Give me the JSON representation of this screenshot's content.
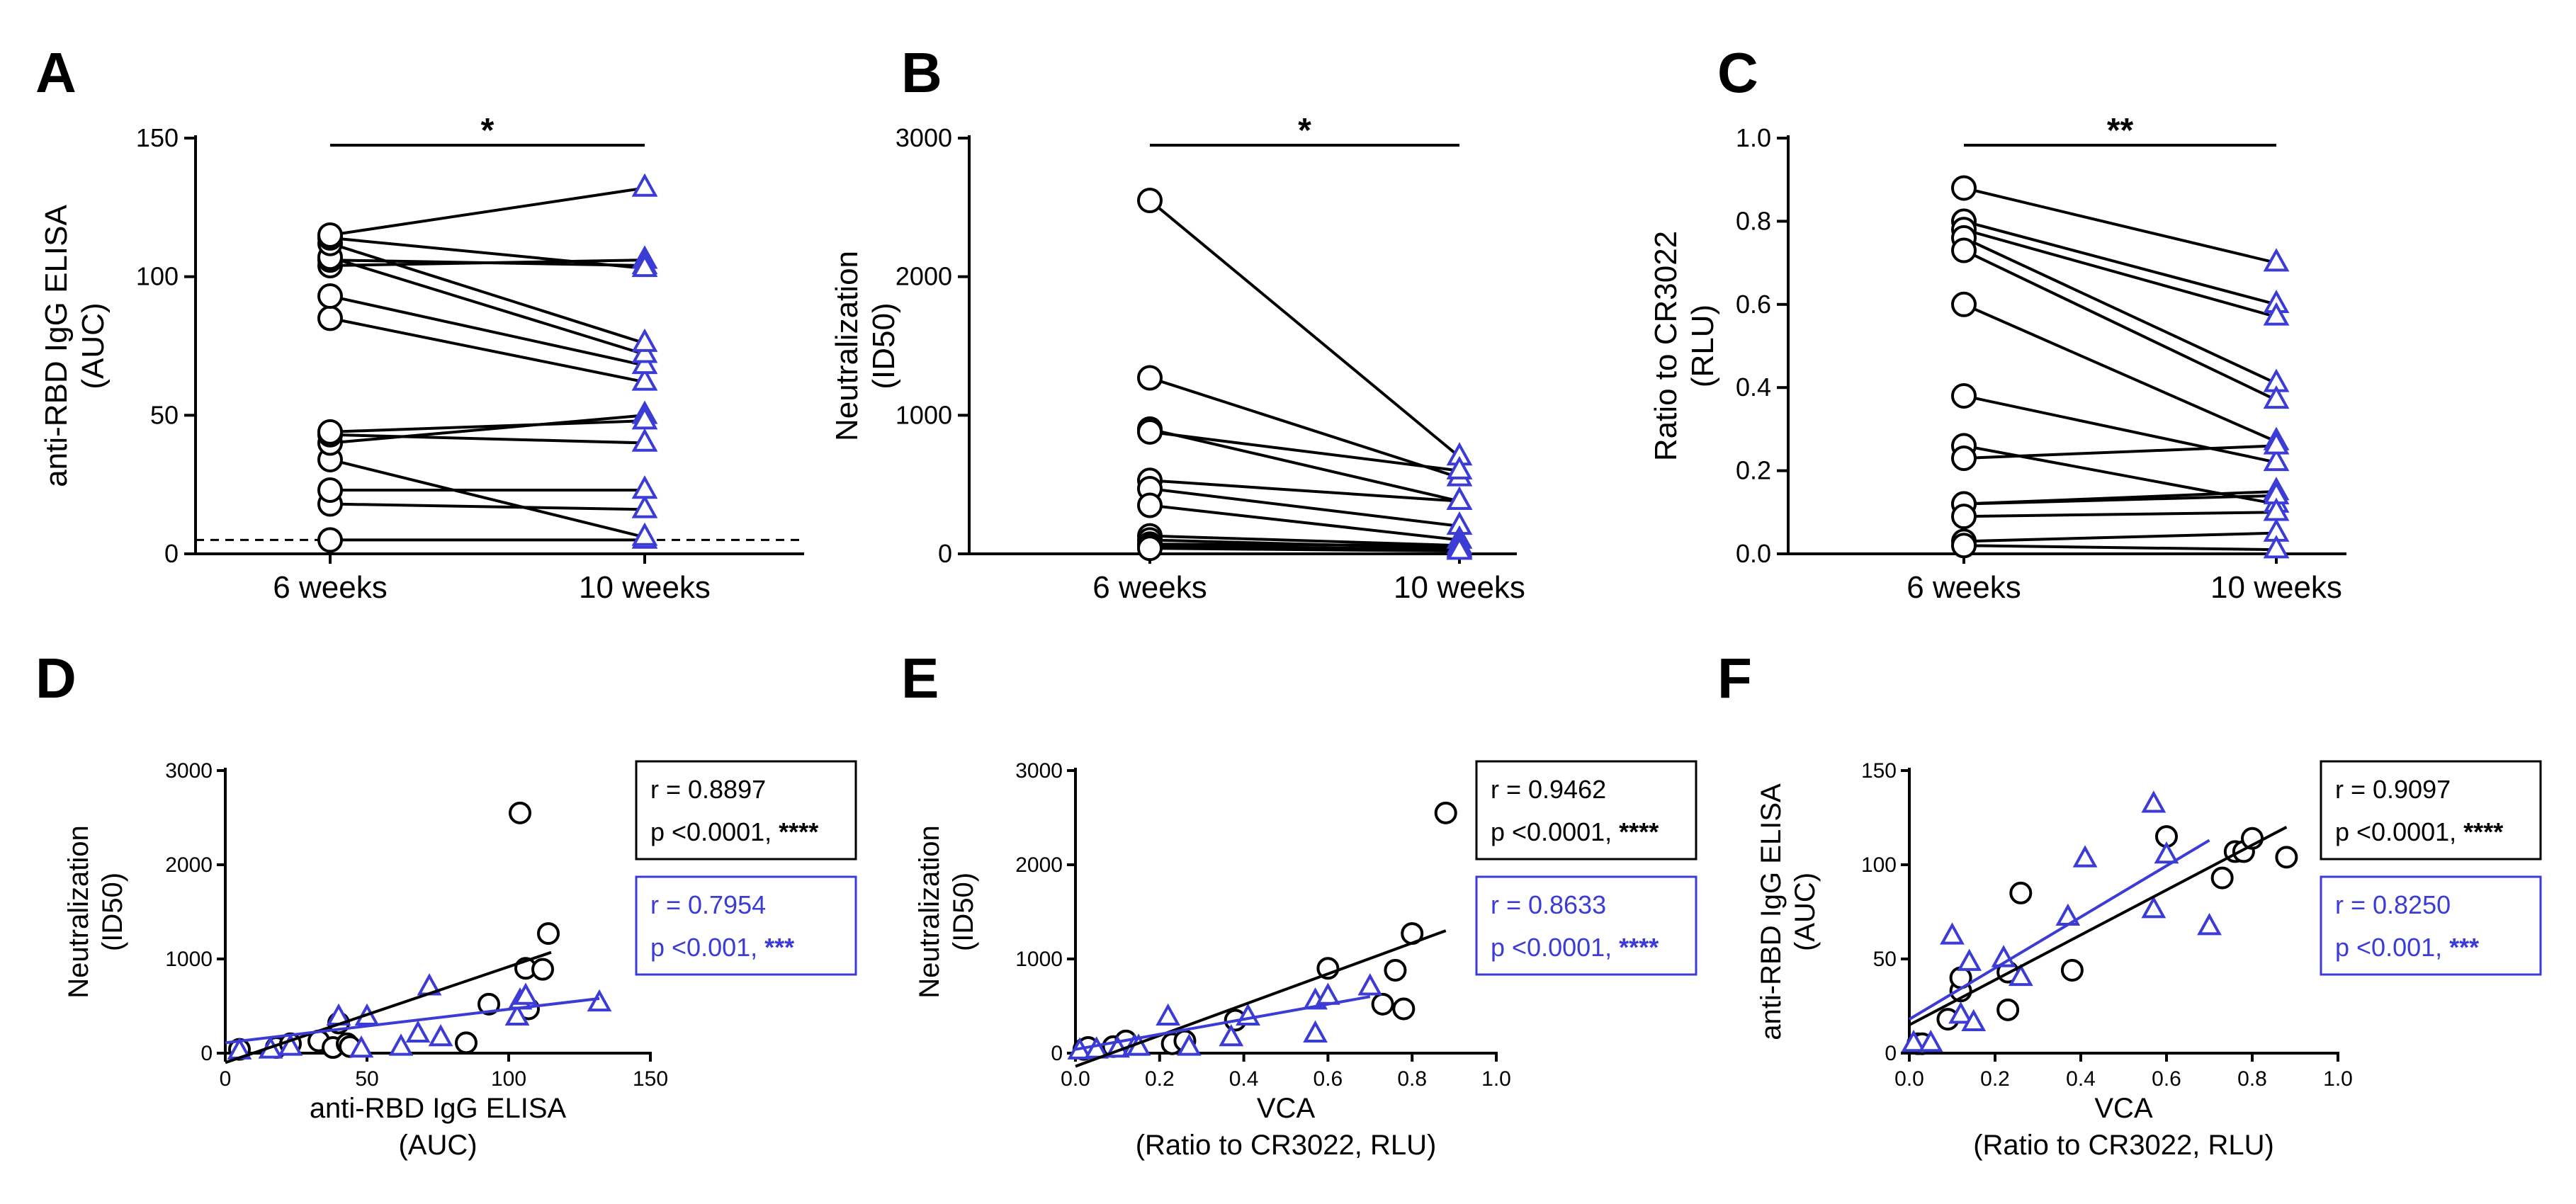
{
  "colors": {
    "black": "#000000",
    "blue": "#3b3bd6"
  },
  "chart_data": [
    {
      "type": "line",
      "panel": "A",
      "ylabel": [
        "anti-RBD IgG ELISA",
        "(AUC)"
      ],
      "ylim": [
        0,
        150
      ],
      "yticks": [
        0,
        50,
        100,
        150
      ],
      "categories": [
        "6 weeks",
        "10 weeks"
      ],
      "significance": "*",
      "cutoff": 5,
      "pairs": [
        [
          5,
          5
        ],
        [
          18,
          16
        ],
        [
          23,
          23
        ],
        [
          34,
          6
        ],
        [
          40,
          50
        ],
        [
          43,
          40
        ],
        [
          44,
          48
        ],
        [
          85,
          62
        ],
        [
          93,
          68
        ],
        [
          104,
          106
        ],
        [
          106,
          104
        ],
        [
          107,
          72
        ],
        [
          112,
          76
        ],
        [
          114,
          103
        ],
        [
          115,
          132
        ]
      ]
    },
    {
      "type": "line",
      "panel": "B",
      "ylabel": [
        "Neutralization",
        "(ID50)"
      ],
      "ylim": [
        0,
        3000
      ],
      "yticks": [
        0,
        1000,
        2000,
        3000
      ],
      "categories": [
        "6 weeks",
        "10 weeks"
      ],
      "significance": "*",
      "pairs": [
        [
          2550,
          700
        ],
        [
          1270,
          550
        ],
        [
          900,
          380
        ],
        [
          880,
          600
        ],
        [
          530,
          380
        ],
        [
          470,
          200
        ],
        [
          350,
          100
        ],
        [
          130,
          60
        ],
        [
          100,
          40
        ],
        [
          70,
          60
        ],
        [
          60,
          30
        ],
        [
          40,
          20
        ]
      ]
    },
    {
      "type": "line",
      "panel": "C",
      "ylabel": [
        "Ratio to CR3022",
        "(RLU)"
      ],
      "ylim": [
        0,
        1.0
      ],
      "yticks": [
        "0.0",
        "0.2",
        "0.4",
        "0.6",
        "0.8",
        "1.0"
      ],
      "categories": [
        "6 weeks",
        "10 weeks"
      ],
      "significance": "**",
      "pairs": [
        [
          0.88,
          0.7
        ],
        [
          0.8,
          0.6
        ],
        [
          0.78,
          0.57
        ],
        [
          0.76,
          0.41
        ],
        [
          0.73,
          0.37
        ],
        [
          0.6,
          0.27
        ],
        [
          0.38,
          0.22
        ],
        [
          0.26,
          0.12
        ],
        [
          0.23,
          0.26
        ],
        [
          0.12,
          0.15
        ],
        [
          0.12,
          0.14
        ],
        [
          0.09,
          0.1
        ],
        [
          0.03,
          0.05
        ],
        [
          0.02,
          0.01
        ]
      ]
    },
    {
      "type": "scatter",
      "panel": "D",
      "xlabel": [
        "anti-RBD IgG ELISA",
        "(AUC)"
      ],
      "ylabel": [
        "Neutralization",
        "(ID50)"
      ],
      "xlim": [
        0,
        150
      ],
      "ylim": [
        0,
        3000
      ],
      "xticks": [
        0,
        50,
        100,
        150
      ],
      "yticks": [
        0,
        1000,
        2000,
        3000
      ],
      "series": [
        {
          "name": "6 weeks",
          "marker": "circle",
          "color": "#000000",
          "points": [
            [
              5,
              40
            ],
            [
              18,
              60
            ],
            [
              23,
              100
            ],
            [
              33,
              130
            ],
            [
              38,
              60
            ],
            [
              40,
              320
            ],
            [
              43,
              100
            ],
            [
              44,
              70
            ],
            [
              85,
              110
            ],
            [
              93,
              520
            ],
            [
              104,
              2550
            ],
            [
              106,
              900
            ],
            [
              107,
              470
            ],
            [
              112,
              890
            ],
            [
              114,
              1270
            ]
          ],
          "fit": [
            [
              0,
              -100
            ],
            [
              115,
              1070
            ]
          ]
        },
        {
          "name": "10 weeks",
          "marker": "triangle",
          "color": "#3b3bd6",
          "points": [
            [
              5,
              20
            ],
            [
              16,
              30
            ],
            [
              23,
              60
            ],
            [
              40,
              380
            ],
            [
              48,
              40
            ],
            [
              50,
              380
            ],
            [
              62,
              60
            ],
            [
              68,
              200
            ],
            [
              72,
              700
            ],
            [
              76,
              160
            ],
            [
              103,
              380
            ],
            [
              104,
              550
            ],
            [
              106,
              600
            ],
            [
              132,
              530
            ]
          ],
          "fit": [
            [
              0,
              110
            ],
            [
              132,
              580
            ]
          ]
        }
      ],
      "stats": [
        {
          "r": "r = 0.8897",
          "p": "p <0.0001, ",
          "stars": "****",
          "color": "#000000"
        },
        {
          "r": "r = 0.7954",
          "p": "p <0.001, ",
          "stars": "***",
          "color": "#3b3bd6"
        }
      ]
    },
    {
      "type": "scatter",
      "panel": "E",
      "xlabel": [
        "VCA",
        "(Ratio to CR3022, RLU)"
      ],
      "ylabel": [
        "Neutralization",
        "(ID50)"
      ],
      "xlim": [
        0,
        1.0
      ],
      "ylim": [
        0,
        3000
      ],
      "xticks": [
        "0.0",
        "0.2",
        "0.4",
        "0.6",
        "0.8",
        "1.0"
      ],
      "yticks": [
        0,
        1000,
        2000,
        3000
      ],
      "series": [
        {
          "name": "6 weeks",
          "marker": "circle",
          "color": "#000000",
          "points": [
            [
              0.02,
              40
            ],
            [
              0.03,
              60
            ],
            [
              0.09,
              70
            ],
            [
              0.12,
              100
            ],
            [
              0.12,
              130
            ],
            [
              0.23,
              100
            ],
            [
              0.26,
              130
            ],
            [
              0.38,
              350
            ],
            [
              0.6,
              900
            ],
            [
              0.73,
              520
            ],
            [
              0.76,
              880
            ],
            [
              0.78,
              470
            ],
            [
              0.8,
              1270
            ],
            [
              0.88,
              2550
            ]
          ],
          "fit": [
            [
              0,
              -140
            ],
            [
              0.88,
              1300
            ]
          ]
        },
        {
          "name": "10 weeks",
          "marker": "triangle",
          "color": "#3b3bd6",
          "points": [
            [
              0.01,
              20
            ],
            [
              0.05,
              30
            ],
            [
              0.1,
              40
            ],
            [
              0.14,
              60
            ],
            [
              0.15,
              60
            ],
            [
              0.22,
              380
            ],
            [
              0.27,
              60
            ],
            [
              0.37,
              160
            ],
            [
              0.41,
              380
            ],
            [
              0.57,
              200
            ],
            [
              0.57,
              550
            ],
            [
              0.6,
              600
            ],
            [
              0.7,
              700
            ]
          ],
          "fit": [
            [
              0,
              40
            ],
            [
              0.7,
              600
            ]
          ]
        }
      ],
      "stats": [
        {
          "r": "r = 0.9462",
          "p": "p <0.0001, ",
          "stars": "****",
          "color": "#000000"
        },
        {
          "r": "r = 0.8633",
          "p": "p <0.0001, ",
          "stars": "****",
          "color": "#3b3bd6"
        }
      ]
    },
    {
      "type": "scatter",
      "panel": "F",
      "xlabel": [
        "VCA",
        "(Ratio to CR3022, RLU)"
      ],
      "ylabel": [
        "anti-RBD IgG ELISA",
        "(AUC)"
      ],
      "xlim": [
        0,
        1.0
      ],
      "ylim": [
        0,
        150
      ],
      "xticks": [
        "0.0",
        "0.2",
        "0.4",
        "0.6",
        "0.8",
        "1.0"
      ],
      "yticks": [
        0,
        50,
        100,
        150
      ],
      "series": [
        {
          "name": "6 weeks",
          "marker": "circle",
          "color": "#000000",
          "points": [
            [
              0.02,
              5
            ],
            [
              0.03,
              5
            ],
            [
              0.09,
              18
            ],
            [
              0.12,
              33
            ],
            [
              0.12,
              40
            ],
            [
              0.23,
              23
            ],
            [
              0.23,
              43
            ],
            [
              0.26,
              85
            ],
            [
              0.38,
              44
            ],
            [
              0.6,
              115
            ],
            [
              0.73,
              93
            ],
            [
              0.76,
              107
            ],
            [
              0.78,
              107
            ],
            [
              0.8,
              114
            ],
            [
              0.88,
              104
            ]
          ],
          "fit": [
            [
              0,
              15
            ],
            [
              0.88,
              120
            ]
          ]
        },
        {
          "name": "10 weeks",
          "marker": "triangle",
          "color": "#3b3bd6",
          "points": [
            [
              0.01,
              5
            ],
            [
              0.05,
              5
            ],
            [
              0.1,
              62
            ],
            [
              0.12,
              20
            ],
            [
              0.14,
              48
            ],
            [
              0.15,
              16
            ],
            [
              0.22,
              50
            ],
            [
              0.26,
              40
            ],
            [
              0.37,
              72
            ],
            [
              0.41,
              103
            ],
            [
              0.57,
              76
            ],
            [
              0.57,
              132
            ],
            [
              0.6,
              105
            ],
            [
              0.7,
              67
            ]
          ],
          "fit": [
            [
              0,
              18
            ],
            [
              0.7,
              113
            ]
          ]
        }
      ],
      "stats": [
        {
          "r": "r = 0.9097",
          "p": "p <0.0001, ",
          "stars": "****",
          "color": "#000000"
        },
        {
          "r": "r = 0.8250",
          "p": "p <0.001, ",
          "stars": "***",
          "color": "#3b3bd6"
        }
      ]
    }
  ]
}
